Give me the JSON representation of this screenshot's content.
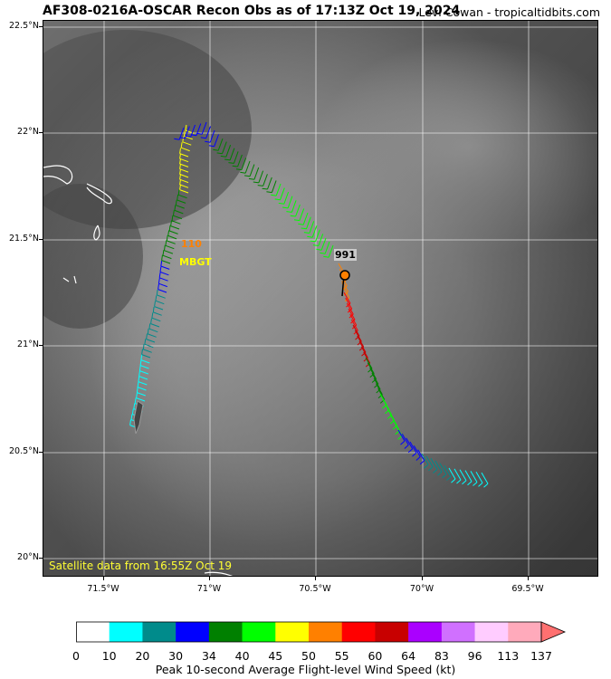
{
  "header": {
    "title": "AF308-0216A-OSCAR Recon Obs as of 17:13Z Oct 19, 2024",
    "credit": "Levi Cowan - tropicaltidbits.com"
  },
  "map": {
    "lat_ticks": [
      "22.5°N",
      "22°N",
      "21.5°N",
      "21°N",
      "20.5°N",
      "20°N"
    ],
    "lon_ticks": [
      "71.5°W",
      "71°W",
      "70.5°W",
      "70°W",
      "69.5°W"
    ],
    "satellite_note": "Satellite data from 16:55Z Oct 19",
    "obs_labels": [
      {
        "text": "110",
        "color": "#ff8000"
      },
      {
        "text": "MBGT",
        "color": "#ffff00"
      },
      {
        "text": "991",
        "color": "#000000"
      }
    ],
    "center_marker_color": "#ff8000"
  },
  "colorbar": {
    "labels": [
      "0",
      "10",
      "20",
      "30",
      "34",
      "40",
      "45",
      "50",
      "55",
      "60",
      "64",
      "83",
      "96",
      "113",
      "137"
    ],
    "colors": [
      "#ffffff",
      "#00ffff",
      "#008b8b",
      "#0000ff",
      "#008000",
      "#00ff00",
      "#ffff00",
      "#ff8000",
      "#ff0000",
      "#c80000",
      "#aa00ff",
      "#d070ff",
      "#ffccff",
      "#ffaabb"
    ],
    "extend_color": "#ff7070",
    "title": "Peak 10-second Average Flight-level Wind Speed (kt)"
  }
}
